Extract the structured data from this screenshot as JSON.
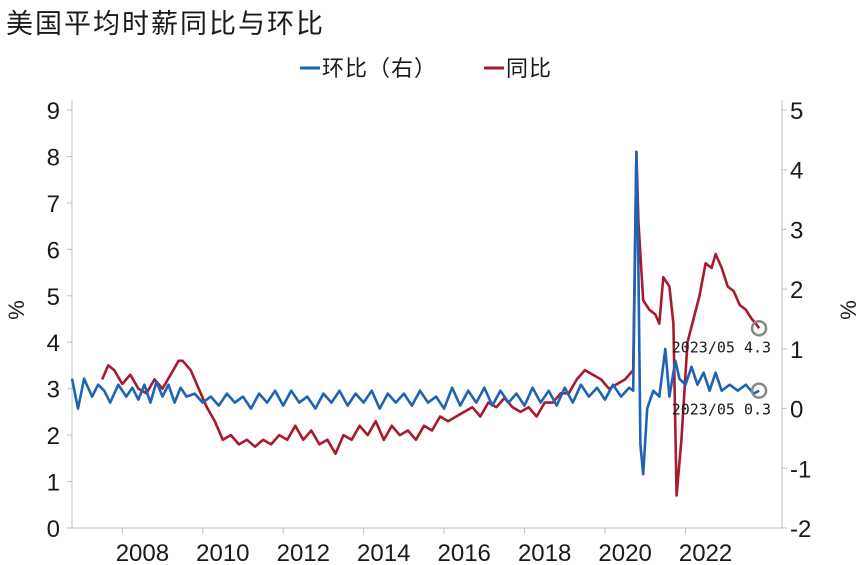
{
  "chart_data": {
    "type": "line",
    "title": "美国平均时薪同比与环比",
    "y_left_label": "%",
    "y_right_label": "%",
    "y_left_range": [
      0,
      9
    ],
    "y_right_range": [
      -2,
      5
    ],
    "y_left_ticks": [
      "0",
      "1",
      "2",
      "3",
      "4",
      "5",
      "6",
      "7",
      "8",
      "9"
    ],
    "y_right_ticks": [
      "-2",
      "-1",
      "0",
      "1",
      "2",
      "3",
      "4",
      "5"
    ],
    "x_range": [
      2006.25,
      2023.9
    ],
    "x_ticks": [
      "2008",
      "2010",
      "2012",
      "2014",
      "2016",
      "2018",
      "2020",
      "2022"
    ],
    "legend_position": "top-center",
    "colors": {
      "mom": "#1f64b4",
      "yoy": "#a81a2e",
      "marker": "#888888"
    },
    "series": [
      {
        "name": "环比（右）",
        "key": "mom",
        "axis": "right",
        "points": [
          [
            2006.25,
            0.5
          ],
          [
            2006.4,
            0.0
          ],
          [
            2006.55,
            0.5
          ],
          [
            2006.75,
            0.2
          ],
          [
            2006.9,
            0.4
          ],
          [
            2007.05,
            0.3
          ],
          [
            2007.2,
            0.1
          ],
          [
            2007.4,
            0.4
          ],
          [
            2007.6,
            0.2
          ],
          [
            2007.75,
            0.35
          ],
          [
            2007.9,
            0.15
          ],
          [
            2008.05,
            0.4
          ],
          [
            2008.2,
            0.1
          ],
          [
            2008.35,
            0.45
          ],
          [
            2008.5,
            0.2
          ],
          [
            2008.65,
            0.4
          ],
          [
            2008.8,
            0.1
          ],
          [
            2008.95,
            0.35
          ],
          [
            2009.1,
            0.2
          ],
          [
            2009.3,
            0.25
          ],
          [
            2009.5,
            0.1
          ],
          [
            2009.7,
            0.2
          ],
          [
            2009.9,
            0.05
          ],
          [
            2010.1,
            0.25
          ],
          [
            2010.3,
            0.1
          ],
          [
            2010.5,
            0.2
          ],
          [
            2010.7,
            0.0
          ],
          [
            2010.9,
            0.25
          ],
          [
            2011.1,
            0.1
          ],
          [
            2011.3,
            0.3
          ],
          [
            2011.5,
            0.05
          ],
          [
            2011.7,
            0.3
          ],
          [
            2011.9,
            0.1
          ],
          [
            2012.1,
            0.2
          ],
          [
            2012.3,
            0.0
          ],
          [
            2012.5,
            0.25
          ],
          [
            2012.7,
            0.1
          ],
          [
            2012.9,
            0.3
          ],
          [
            2013.1,
            0.05
          ],
          [
            2013.3,
            0.25
          ],
          [
            2013.5,
            0.1
          ],
          [
            2013.7,
            0.3
          ],
          [
            2013.9,
            0.0
          ],
          [
            2014.1,
            0.25
          ],
          [
            2014.3,
            0.1
          ],
          [
            2014.5,
            0.25
          ],
          [
            2014.7,
            0.05
          ],
          [
            2014.9,
            0.3
          ],
          [
            2015.1,
            0.1
          ],
          [
            2015.3,
            0.2
          ],
          [
            2015.5,
            0.0
          ],
          [
            2015.7,
            0.35
          ],
          [
            2015.9,
            0.05
          ],
          [
            2016.1,
            0.3
          ],
          [
            2016.3,
            0.1
          ],
          [
            2016.5,
            0.35
          ],
          [
            2016.7,
            0.05
          ],
          [
            2016.9,
            0.3
          ],
          [
            2017.1,
            0.1
          ],
          [
            2017.3,
            0.25
          ],
          [
            2017.5,
            0.05
          ],
          [
            2017.7,
            0.35
          ],
          [
            2017.9,
            0.1
          ],
          [
            2018.1,
            0.3
          ],
          [
            2018.3,
            0.05
          ],
          [
            2018.5,
            0.35
          ],
          [
            2018.7,
            0.1
          ],
          [
            2018.9,
            0.4
          ],
          [
            2019.1,
            0.2
          ],
          [
            2019.3,
            0.35
          ],
          [
            2019.5,
            0.15
          ],
          [
            2019.7,
            0.4
          ],
          [
            2019.9,
            0.2
          ],
          [
            2020.1,
            0.35
          ],
          [
            2020.2,
            0.3
          ],
          [
            2020.28,
            4.3
          ],
          [
            2020.33,
            2.4
          ],
          [
            2020.38,
            -0.6
          ],
          [
            2020.45,
            -1.1
          ],
          [
            2020.55,
            0.0
          ],
          [
            2020.7,
            0.3
          ],
          [
            2020.85,
            0.2
          ],
          [
            2021.0,
            1.0
          ],
          [
            2021.1,
            0.2
          ],
          [
            2021.25,
            0.8
          ],
          [
            2021.35,
            0.5
          ],
          [
            2021.5,
            0.4
          ],
          [
            2021.65,
            0.7
          ],
          [
            2021.8,
            0.4
          ],
          [
            2021.95,
            0.6
          ],
          [
            2022.1,
            0.3
          ],
          [
            2022.25,
            0.6
          ],
          [
            2022.4,
            0.3
          ],
          [
            2022.6,
            0.4
          ],
          [
            2022.8,
            0.3
          ],
          [
            2023.0,
            0.4
          ],
          [
            2023.2,
            0.25
          ],
          [
            2023.33,
            0.3
          ]
        ]
      },
      {
        "name": "同比",
        "key": "yoy",
        "axis": "left",
        "points": [
          [
            2007.0,
            3.2
          ],
          [
            2007.15,
            3.5
          ],
          [
            2007.3,
            3.4
          ],
          [
            2007.5,
            3.1
          ],
          [
            2007.7,
            3.3
          ],
          [
            2007.9,
            3.0
          ],
          [
            2008.1,
            2.9
          ],
          [
            2008.3,
            3.2
          ],
          [
            2008.5,
            3.0
          ],
          [
            2008.7,
            3.3
          ],
          [
            2008.9,
            3.6
          ],
          [
            2009.0,
            3.6
          ],
          [
            2009.2,
            3.4
          ],
          [
            2009.4,
            3.0
          ],
          [
            2009.6,
            2.6
          ],
          [
            2009.8,
            2.3
          ],
          [
            2010.0,
            1.9
          ],
          [
            2010.2,
            2.0
          ],
          [
            2010.4,
            1.8
          ],
          [
            2010.6,
            1.9
          ],
          [
            2010.8,
            1.75
          ],
          [
            2011.0,
            1.9
          ],
          [
            2011.2,
            1.8
          ],
          [
            2011.4,
            2.0
          ],
          [
            2011.6,
            1.9
          ],
          [
            2011.8,
            2.2
          ],
          [
            2012.0,
            1.9
          ],
          [
            2012.2,
            2.1
          ],
          [
            2012.4,
            1.8
          ],
          [
            2012.6,
            1.9
          ],
          [
            2012.8,
            1.6
          ],
          [
            2013.0,
            2.0
          ],
          [
            2013.2,
            1.9
          ],
          [
            2013.4,
            2.2
          ],
          [
            2013.6,
            2.0
          ],
          [
            2013.8,
            2.3
          ],
          [
            2014.0,
            1.9
          ],
          [
            2014.2,
            2.2
          ],
          [
            2014.4,
            2.0
          ],
          [
            2014.6,
            2.1
          ],
          [
            2014.8,
            1.9
          ],
          [
            2015.0,
            2.2
          ],
          [
            2015.2,
            2.1
          ],
          [
            2015.4,
            2.4
          ],
          [
            2015.6,
            2.3
          ],
          [
            2015.8,
            2.4
          ],
          [
            2016.0,
            2.5
          ],
          [
            2016.2,
            2.6
          ],
          [
            2016.4,
            2.4
          ],
          [
            2016.6,
            2.7
          ],
          [
            2016.8,
            2.6
          ],
          [
            2017.0,
            2.8
          ],
          [
            2017.2,
            2.6
          ],
          [
            2017.4,
            2.5
          ],
          [
            2017.6,
            2.6
          ],
          [
            2017.8,
            2.4
          ],
          [
            2018.0,
            2.7
          ],
          [
            2018.2,
            2.7
          ],
          [
            2018.4,
            2.9
          ],
          [
            2018.6,
            2.9
          ],
          [
            2018.8,
            3.2
          ],
          [
            2019.0,
            3.4
          ],
          [
            2019.2,
            3.3
          ],
          [
            2019.4,
            3.2
          ],
          [
            2019.6,
            3.0
          ],
          [
            2019.8,
            3.1
          ],
          [
            2020.0,
            3.2
          ],
          [
            2020.2,
            3.4
          ],
          [
            2020.28,
            8.1
          ],
          [
            2020.33,
            6.6
          ],
          [
            2020.45,
            4.9
          ],
          [
            2020.6,
            4.7
          ],
          [
            2020.75,
            4.6
          ],
          [
            2020.85,
            4.4
          ],
          [
            2020.95,
            5.4
          ],
          [
            2021.1,
            5.2
          ],
          [
            2021.2,
            4.4
          ],
          [
            2021.28,
            0.7
          ],
          [
            2021.4,
            1.9
          ],
          [
            2021.55,
            4.0
          ],
          [
            2021.7,
            4.5
          ],
          [
            2021.85,
            5.0
          ],
          [
            2022.0,
            5.7
          ],
          [
            2022.15,
            5.6
          ],
          [
            2022.25,
            5.9
          ],
          [
            2022.4,
            5.6
          ],
          [
            2022.55,
            5.2
          ],
          [
            2022.7,
            5.1
          ],
          [
            2022.85,
            4.8
          ],
          [
            2023.0,
            4.7
          ],
          [
            2023.15,
            4.5
          ],
          [
            2023.25,
            4.4
          ],
          [
            2023.33,
            4.3
          ]
        ]
      }
    ],
    "annotations": [
      {
        "key": "yoy",
        "text": "2023/05 4.3",
        "x": 2023.33,
        "value": 4.3,
        "axis": "left"
      },
      {
        "key": "mom",
        "text": "2023/05 0.3",
        "x": 2023.33,
        "value": 0.3,
        "axis": "right"
      }
    ]
  }
}
